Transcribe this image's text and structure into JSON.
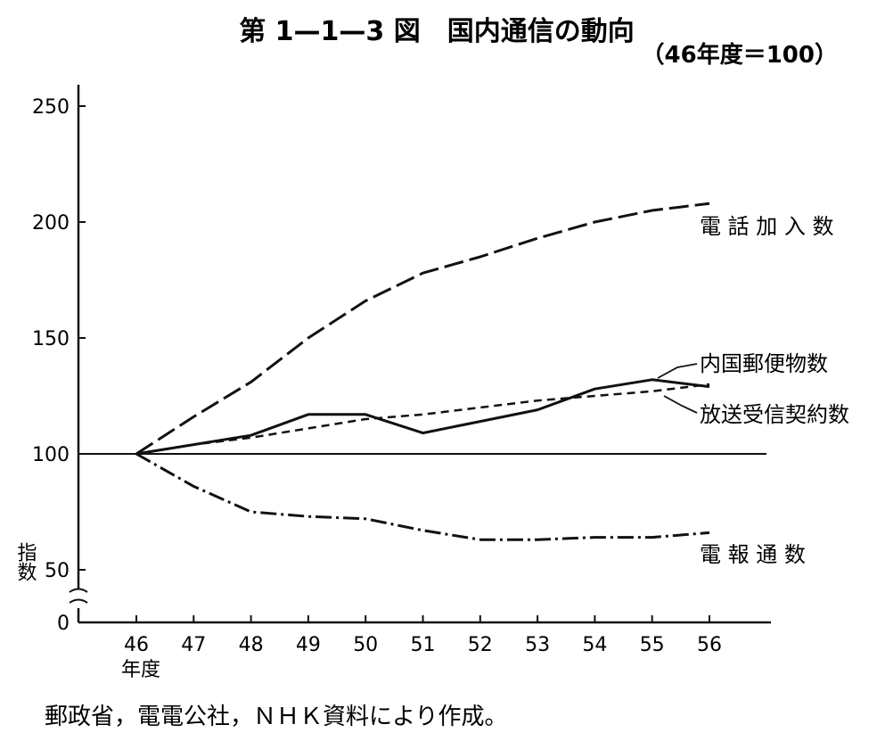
{
  "chart_data": {
    "type": "line",
    "title": "第 1—1—3 図　国内通信の動向",
    "subtitle": "（46年度＝100）",
    "xlabel": "年度",
    "ylabel": "指数",
    "x": [
      "46",
      "47",
      "48",
      "49",
      "50",
      "51",
      "52",
      "53",
      "54",
      "55",
      "56"
    ],
    "yticks": [
      "0",
      "50",
      "100",
      "150",
      "200",
      "250"
    ],
    "ylim": [
      0,
      250
    ],
    "axis_break": true,
    "grid": false,
    "legend": "labels at line ends (right)",
    "series": [
      {
        "name": "電 話 加 入 数",
        "style": "long-dash",
        "values": [
          100,
          116,
          131,
          150,
          166,
          178,
          185,
          193,
          200,
          205,
          208
        ]
      },
      {
        "name": "内国郵便物数",
        "style": "solid",
        "values": [
          100,
          104,
          108,
          117,
          117,
          109,
          114,
          119,
          128,
          132,
          129
        ]
      },
      {
        "name": "放送受信契約数",
        "style": "short-dash",
        "values": [
          100,
          104,
          107,
          111,
          115,
          117,
          120,
          123,
          125,
          127,
          130
        ]
      },
      {
        "name": "電 報 通 数",
        "style": "dash-dot",
        "values": [
          100,
          86,
          75,
          73,
          72,
          67,
          63,
          63,
          64,
          64,
          66
        ]
      }
    ],
    "source": "郵政省，電電公社，ＮＨＫ資料により作成。"
  }
}
